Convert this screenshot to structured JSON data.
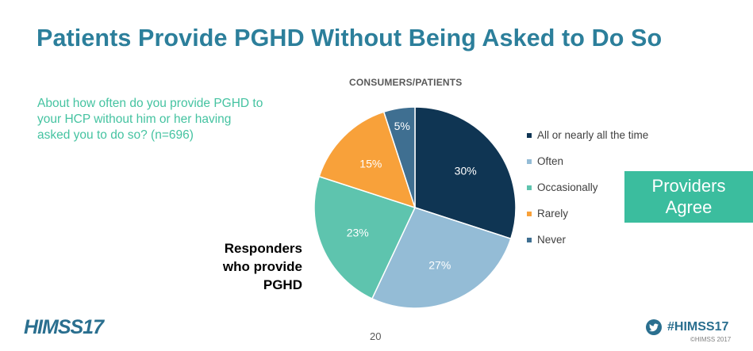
{
  "slide": {
    "title": "Patients Provide PGHD Without Being Asked to Do So",
    "question": "About how often do you provide PGHD to your HCP without him or her having asked you to do so? (n=696)",
    "responders_lines": [
      "Responders",
      "who provide",
      "PGHD"
    ],
    "badge_lines": [
      "Providers",
      "Agree"
    ],
    "page_number": "20"
  },
  "footer": {
    "logo_text": "HIMSS17",
    "hashtag": "#HIMSS17",
    "copyright": "©HIMSS 2017"
  },
  "chart_data": {
    "type": "pie",
    "title": "CONSUMERS/PATIENTS",
    "categories": [
      "All or nearly all the time",
      "Often",
      "Occasionally",
      "Rarely",
      "Never"
    ],
    "values": [
      30,
      27,
      23,
      15,
      5
    ],
    "labels": [
      "30%",
      "27%",
      "23%",
      "15%",
      "5%"
    ],
    "colors": [
      "#0f3553",
      "#94bcd6",
      "#5ec4ae",
      "#f8a13a",
      "#3f6f91"
    ],
    "legend_position": "right"
  }
}
